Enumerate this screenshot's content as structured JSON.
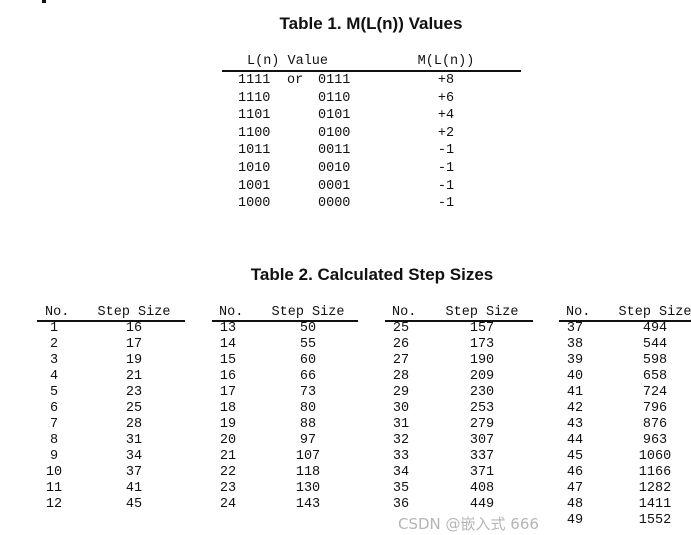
{
  "table1": {
    "title": "Table 1.  M(L(n)) Values",
    "headers": [
      "L(n) Value",
      "M(L(n))"
    ],
    "rows": [
      {
        "a": "1111",
        "or": "or",
        "b": "0111",
        "m": "+8"
      },
      {
        "a": "1110",
        "b": "0110",
        "m": "+6"
      },
      {
        "a": "1101",
        "b": "0101",
        "m": "+4"
      },
      {
        "a": "1100",
        "b": "0100",
        "m": "+2"
      },
      {
        "a": "1011",
        "b": "0011",
        "m": "-1"
      },
      {
        "a": "1010",
        "b": "0010",
        "m": "-1"
      },
      {
        "a": "1001",
        "b": "0001",
        "m": "-1"
      },
      {
        "a": "1000",
        "b": "0000",
        "m": "-1"
      }
    ]
  },
  "table2": {
    "title": "Table 2.  Calculated Step Sizes",
    "headers": [
      "No.",
      "Step Size"
    ],
    "groups": [
      [
        [
          "1",
          "16"
        ],
        [
          "2",
          "17"
        ],
        [
          "3",
          "19"
        ],
        [
          "4",
          "21"
        ],
        [
          "5",
          "23"
        ],
        [
          "6",
          "25"
        ],
        [
          "7",
          "28"
        ],
        [
          "8",
          "31"
        ],
        [
          "9",
          "34"
        ],
        [
          "10",
          "37"
        ],
        [
          "11",
          "41"
        ],
        [
          "12",
          "45"
        ]
      ],
      [
        [
          "13",
          "50"
        ],
        [
          "14",
          "55"
        ],
        [
          "15",
          "60"
        ],
        [
          "16",
          "66"
        ],
        [
          "17",
          "73"
        ],
        [
          "18",
          "80"
        ],
        [
          "19",
          "88"
        ],
        [
          "20",
          "97"
        ],
        [
          "21",
          "107"
        ],
        [
          "22",
          "118"
        ],
        [
          "23",
          "130"
        ],
        [
          "24",
          "143"
        ]
      ],
      [
        [
          "25",
          "157"
        ],
        [
          "26",
          "173"
        ],
        [
          "27",
          "190"
        ],
        [
          "28",
          "209"
        ],
        [
          "29",
          "230"
        ],
        [
          "30",
          "253"
        ],
        [
          "31",
          "279"
        ],
        [
          "32",
          "307"
        ],
        [
          "33",
          "337"
        ],
        [
          "34",
          "371"
        ],
        [
          "35",
          "408"
        ],
        [
          "36",
          "449"
        ]
      ],
      [
        [
          "37",
          "494"
        ],
        [
          "38",
          "544"
        ],
        [
          "39",
          "598"
        ],
        [
          "40",
          "658"
        ],
        [
          "41",
          "724"
        ],
        [
          "42",
          "796"
        ],
        [
          "43",
          "876"
        ],
        [
          "44",
          "963"
        ],
        [
          "45",
          "1060"
        ],
        [
          "46",
          "1166"
        ],
        [
          "47",
          "1282"
        ],
        [
          "48",
          "1411"
        ],
        [
          "49",
          "1552"
        ]
      ]
    ]
  },
  "watermark": "CSDN @嵌入式 666"
}
